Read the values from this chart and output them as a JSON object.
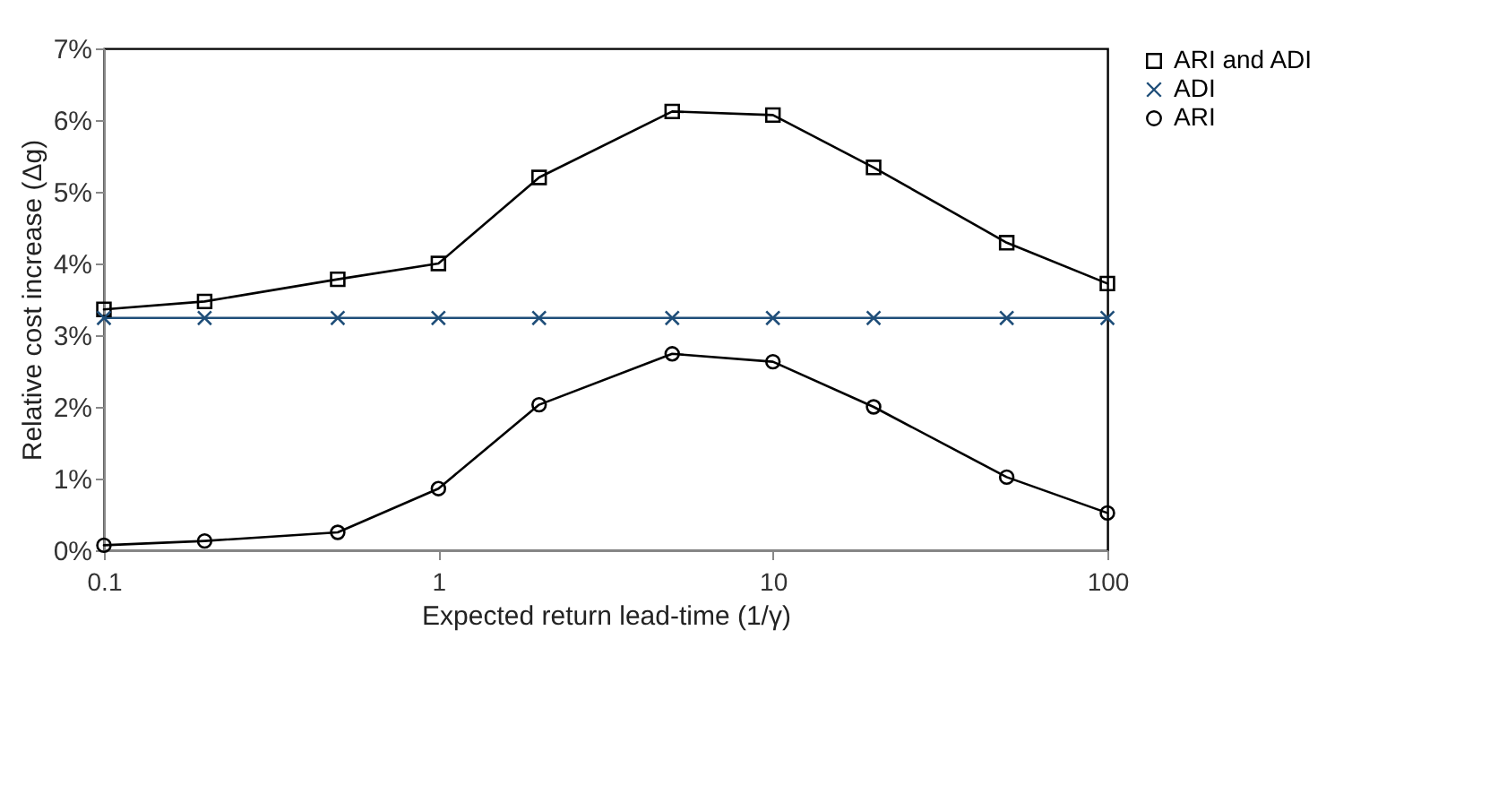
{
  "chart_data": {
    "type": "line",
    "xlabel": "Expected return lead-time (1/γ)",
    "ylabel": "Relative cost increase (Δg)",
    "x": [
      0.1,
      0.2,
      0.5,
      1,
      2,
      5,
      10,
      20,
      50,
      100
    ],
    "series": [
      {
        "name": "ARI and ADI",
        "color": "#000000",
        "marker": "square",
        "values": [
          3.36,
          3.47,
          3.78,
          4.0,
          5.2,
          6.12,
          6.07,
          5.34,
          4.29,
          3.72
        ]
      },
      {
        "name": "ADI",
        "color": "#1f4e79",
        "marker": "cross",
        "values": [
          3.24,
          3.24,
          3.24,
          3.24,
          3.24,
          3.24,
          3.24,
          3.24,
          3.24,
          3.24
        ]
      },
      {
        "name": "ARI",
        "color": "#000000",
        "marker": "circle",
        "values": [
          0.07,
          0.13,
          0.25,
          0.86,
          2.03,
          2.74,
          2.63,
          2.0,
          1.02,
          0.52
        ]
      }
    ],
    "log": "x",
    "xlim": [
      0.1,
      100
    ],
    "xticks": [
      0.1,
      1,
      10,
      100
    ],
    "ylim": [
      0,
      7
    ],
    "yticks": [
      {
        "value": 0,
        "label": "0%"
      },
      {
        "value": 1,
        "label": "1%"
      },
      {
        "value": 2,
        "label": "2%"
      },
      {
        "value": 3,
        "label": "3%"
      },
      {
        "value": 4,
        "label": "4%"
      },
      {
        "value": 5,
        "label": "5%"
      },
      {
        "value": 6,
        "label": "6%"
      },
      {
        "value": 7,
        "label": "7%"
      }
    ],
    "grid": false,
    "legend": "right",
    "line_style": "solid"
  }
}
